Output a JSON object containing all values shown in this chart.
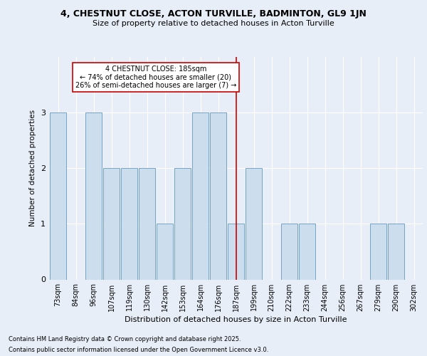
{
  "title1": "4, CHESTNUT CLOSE, ACTON TURVILLE, BADMINTON, GL9 1JN",
  "title2": "Size of property relative to detached houses in Acton Turville",
  "xlabel": "Distribution of detached houses by size in Acton Turville",
  "ylabel": "Number of detached properties",
  "categories": [
    "73sqm",
    "84sqm",
    "96sqm",
    "107sqm",
    "119sqm",
    "130sqm",
    "142sqm",
    "153sqm",
    "164sqm",
    "176sqm",
    "187sqm",
    "199sqm",
    "210sqm",
    "222sqm",
    "233sqm",
    "244sqm",
    "256sqm",
    "267sqm",
    "279sqm",
    "290sqm",
    "302sqm"
  ],
  "values": [
    3,
    0,
    3,
    2,
    2,
    2,
    1,
    2,
    3,
    3,
    1,
    2,
    0,
    1,
    1,
    0,
    0,
    0,
    1,
    1,
    0
  ],
  "bar_color": "#ccdded",
  "bar_edge_color": "#6699bb",
  "vline_index": 10,
  "vline_color": "#cc0000",
  "annotation_title": "4 CHESTNUT CLOSE: 185sqm",
  "annotation_line1": "← 74% of detached houses are smaller (20)",
  "annotation_line2": "26% of semi-detached houses are larger (7) →",
  "annotation_box_color": "#ffffff",
  "annotation_box_edge": "#cc0000",
  "footer1": "Contains HM Land Registry data © Crown copyright and database right 2025.",
  "footer2": "Contains public sector information licensed under the Open Government Licence v3.0.",
  "background_color": "#e8eef8",
  "ylim": [
    0,
    4
  ],
  "title1_fontsize": 9,
  "title2_fontsize": 8,
  "xlabel_fontsize": 8,
  "ylabel_fontsize": 7.5,
  "tick_fontsize": 7,
  "annotation_fontsize": 7,
  "footer_fontsize": 6
}
